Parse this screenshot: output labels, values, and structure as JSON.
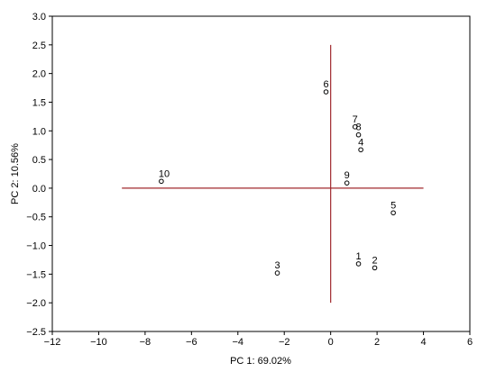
{
  "chart_data": {
    "type": "scatter",
    "xlabel": "PC 1: 69.02%",
    "ylabel": "PC 2: 10.56%",
    "xlim": [
      -12,
      6
    ],
    "ylim": [
      -2.5,
      3.0
    ],
    "x_ticks": [
      "−12",
      "−10",
      "−8",
      "−6",
      "−4",
      "−2",
      "0",
      "2",
      "4",
      "6"
    ],
    "x_tick_values": [
      -12,
      -10,
      -8,
      -6,
      -4,
      -2,
      0,
      2,
      4,
      6
    ],
    "y_ticks": [
      "3.0",
      "2.5",
      "2.0",
      "1.5",
      "1.0",
      "0.5",
      "0.0",
      "−0.5",
      "−1.0",
      "−1.5",
      "−2.0",
      "−2.5"
    ],
    "y_tick_values": [
      3.0,
      2.5,
      2.0,
      1.5,
      1.0,
      0.5,
      0.0,
      -0.5,
      -1.0,
      -1.5,
      -2.0,
      -2.5
    ],
    "grid": false,
    "points": [
      {
        "label": "1",
        "x": 1.2,
        "y": -1.32
      },
      {
        "label": "2",
        "x": 1.9,
        "y": -1.39
      },
      {
        "label": "3",
        "x": -2.3,
        "y": -1.48
      },
      {
        "label": "4",
        "x": 1.3,
        "y": 0.67
      },
      {
        "label": "5",
        "x": 2.7,
        "y": -0.43
      },
      {
        "label": "6",
        "x": -0.2,
        "y": 1.68
      },
      {
        "label": "7",
        "x": 1.05,
        "y": 1.07
      },
      {
        "label": "8",
        "x": 1.2,
        "y": 0.93
      },
      {
        "label": "9",
        "x": 0.7,
        "y": 0.09
      },
      {
        "label": "10",
        "x": -7.3,
        "y": 0.12
      }
    ],
    "reference_lines": {
      "horizontal": {
        "y": 0,
        "x_from": -9,
        "x_to": 4
      },
      "vertical": {
        "x": 0,
        "y_from": -2,
        "y_to": 2.5
      }
    },
    "colors": {
      "reference_lines": "#a0282d",
      "points": "#000000",
      "frame": "#000000"
    }
  }
}
